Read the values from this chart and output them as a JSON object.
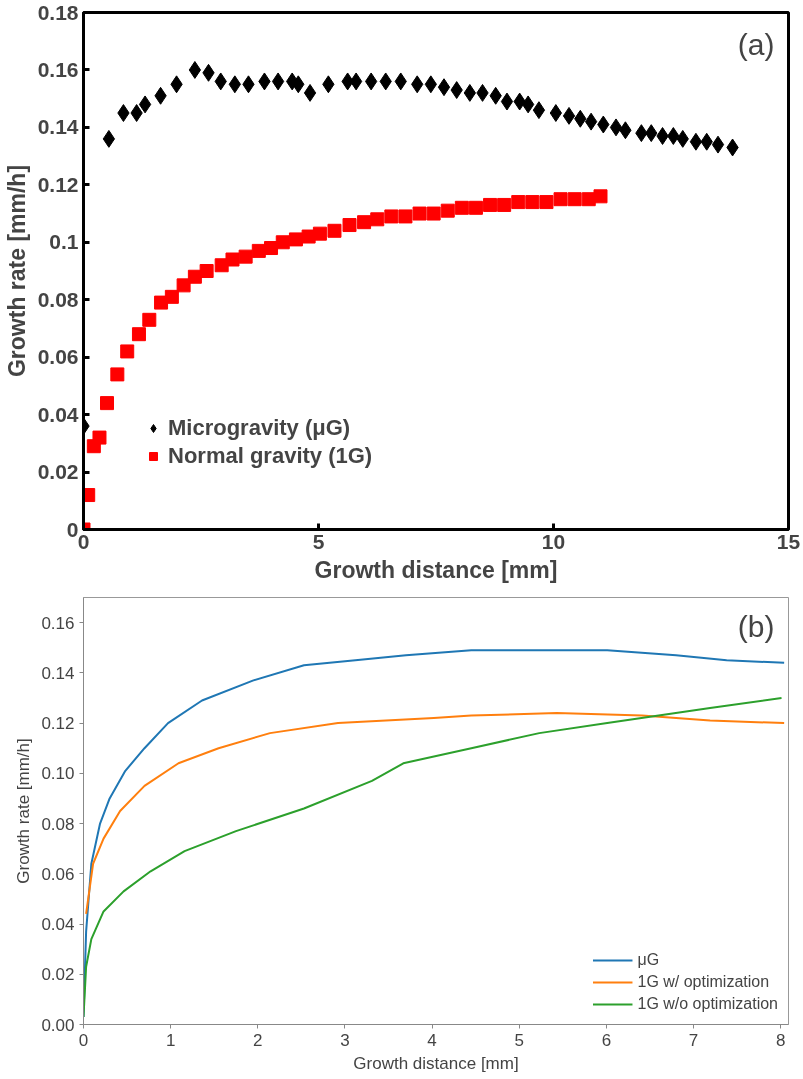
{
  "chart_data": [
    {
      "type": "scatter",
      "xlabel": "Growth distance [mm]",
      "ylabel": "Growth rate [mm/h]",
      "annotations": [
        "(a)"
      ],
      "xlim": [
        0,
        15
      ],
      "ylim": [
        0,
        0.18
      ],
      "xticks": [
        0,
        5,
        10,
        15
      ],
      "yticks": [
        0,
        0.02,
        0.04,
        0.06,
        0.08,
        0.1,
        0.12,
        0.14,
        0.16,
        0.18
      ],
      "grid": false,
      "legend": "bottom left",
      "series": [
        {
          "name": "Microgravity (μG)",
          "color": "#000000",
          "marker": "diamond",
          "x": [
            0,
            0.54,
            0.85,
            1.13,
            1.31,
            1.64,
            1.98,
            2.37,
            2.66,
            2.92,
            3.22,
            3.51,
            3.85,
            4.14,
            4.44,
            4.57,
            4.82,
            5.21,
            5.62,
            5.8,
            6.12,
            6.43,
            6.75,
            7.1,
            7.39,
            7.67,
            7.94,
            8.22,
            8.49,
            8.77,
            9.01,
            9.28,
            9.46,
            9.69,
            10.05,
            10.33,
            10.57,
            10.8,
            11.06,
            11.33,
            11.53,
            11.87,
            12.08,
            12.32,
            12.55,
            12.75,
            13.03,
            13.26,
            13.5,
            13.81
          ],
          "values": [
            0.036,
            0.136,
            0.145,
            0.145,
            0.148,
            0.151,
            0.155,
            0.16,
            0.159,
            0.156,
            0.155,
            0.155,
            0.156,
            0.156,
            0.156,
            0.155,
            0.152,
            0.155,
            0.156,
            0.156,
            0.156,
            0.156,
            0.156,
            0.155,
            0.155,
            0.154,
            0.153,
            0.152,
            0.152,
            0.151,
            0.149,
            0.149,
            0.148,
            0.146,
            0.145,
            0.144,
            0.143,
            0.142,
            0.141,
            0.14,
            0.139,
            0.138,
            0.138,
            0.137,
            0.137,
            0.136,
            0.135,
            0.135,
            0.134,
            0.133
          ]
        },
        {
          "name": "Normal gravity (1G)",
          "color": "#ff0000",
          "marker": "square",
          "x": [
            0,
            0.1,
            0.22,
            0.34,
            0.5,
            0.72,
            0.93,
            1.18,
            1.4,
            1.65,
            1.88,
            2.13,
            2.37,
            2.62,
            2.94,
            3.17,
            3.45,
            3.73,
            3.99,
            4.24,
            4.52,
            4.79,
            5.03,
            5.34,
            5.66,
            5.97,
            6.25,
            6.55,
            6.85,
            7.15,
            7.45,
            7.75,
            8.05,
            8.35,
            8.65,
            8.95,
            9.25,
            9.55,
            9.85,
            10.15,
            10.45,
            10.75,
            11.0
          ],
          "values": [
            0,
            0.012,
            0.029,
            0.032,
            0.044,
            0.054,
            0.062,
            0.068,
            0.073,
            0.079,
            0.081,
            0.085,
            0.088,
            0.09,
            0.092,
            0.094,
            0.095,
            0.097,
            0.098,
            0.1,
            0.101,
            0.102,
            0.103,
            0.104,
            0.106,
            0.107,
            0.108,
            0.109,
            0.109,
            0.11,
            0.11,
            0.111,
            0.112,
            0.112,
            0.113,
            0.113,
            0.114,
            0.114,
            0.114,
            0.115,
            0.115,
            0.115,
            0.116
          ]
        }
      ]
    },
    {
      "type": "line",
      "xlabel": "Growth distance [mm]",
      "ylabel": "Growth rate [mm/h]",
      "annotations": [
        "(b)"
      ],
      "xlim": [
        0,
        8.09
      ],
      "ylim": [
        0,
        0.17
      ],
      "xticks": [
        0,
        1,
        2,
        3,
        4,
        5,
        6,
        7,
        8
      ],
      "yticks": [
        {
          "value": 0,
          "label": "0.00"
        },
        {
          "value": 0.02,
          "label": "0.02"
        },
        {
          "value": 0.04,
          "label": "0.04"
        },
        {
          "value": 0.06,
          "label": "0.06"
        },
        {
          "value": 0.08,
          "label": "0.08"
        },
        {
          "value": 0.1,
          "label": "0.10"
        },
        {
          "value": 0.12,
          "label": "0.12"
        },
        {
          "value": 0.14,
          "label": "0.14"
        },
        {
          "value": 0.16,
          "label": "0.16"
        }
      ],
      "grid": false,
      "legend": "bottom right",
      "line_style": "solid",
      "series": [
        {
          "name": "μG",
          "color": "#1f77b4",
          "x": [
            0,
            0.03,
            0.09,
            0.19,
            0.3,
            0.48,
            0.7,
            0.97,
            1.36,
            1.95,
            2.53,
            3.12,
            3.7,
            4.45,
            5.23,
            6.01,
            6.8,
            7.38,
            8.04
          ],
          "values": [
            0.003,
            0.037,
            0.064,
            0.08,
            0.09,
            0.101,
            0.11,
            0.12,
            0.129,
            0.137,
            0.143,
            0.145,
            0.147,
            0.149,
            0.149,
            0.149,
            0.147,
            0.145,
            0.144
          ]
        },
        {
          "name": "1G w/ optimization",
          "color": "#ff7f0e",
          "x": [
            0.03,
            0.11,
            0.23,
            0.42,
            0.7,
            1.09,
            1.55,
            2.14,
            2.92,
            4.02,
            4.45,
            5.43,
            6.41,
            7.19,
            8.04
          ],
          "values": [
            0.044,
            0.064,
            0.074,
            0.085,
            0.095,
            0.104,
            0.11,
            0.116,
            0.12,
            0.122,
            0.123,
            0.124,
            0.123,
            0.121,
            0.12
          ]
        },
        {
          "name": "1G w/o optimization",
          "color": "#2ca02c",
          "x": [
            0,
            0.03,
            0.09,
            0.23,
            0.46,
            0.77,
            1.16,
            1.75,
            2.53,
            3.31,
            3.67,
            4.45,
            5.23,
            6.01,
            6.6,
            7.19,
            8.01
          ],
          "values": [
            0.003,
            0.023,
            0.034,
            0.045,
            0.053,
            0.061,
            0.069,
            0.077,
            0.086,
            0.097,
            0.104,
            0.11,
            0.116,
            0.12,
            0.123,
            0.126,
            0.13
          ]
        }
      ]
    }
  ]
}
